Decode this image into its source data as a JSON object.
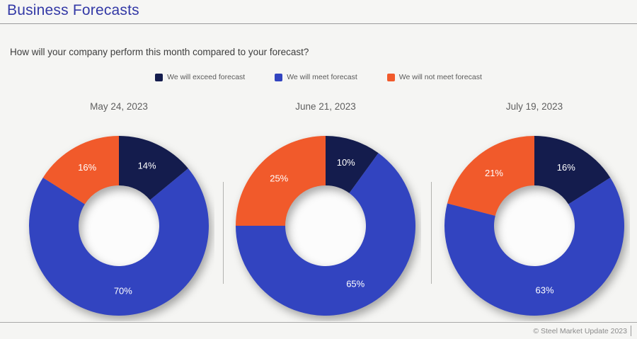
{
  "page": {
    "title": "Business Forecasts",
    "question": "How will your company perform this month compared to your forecast?",
    "footer": "© Steel Market Update 2023"
  },
  "colors": {
    "exceed": "#141C4D",
    "meet": "#3244C0",
    "not_meet": "#F15A2B",
    "title_accent": "#3339A6",
    "background": "#F5F5F3",
    "hole": "#FCFCFC"
  },
  "legend": [
    {
      "key": "exceed",
      "label": "We will exceed forecast"
    },
    {
      "key": "meet",
      "label": "We will meet forecast"
    },
    {
      "key": "not_meet",
      "label": "We will not meet forecast"
    }
  ],
  "chart_data": {
    "type": "pie",
    "subtype": "donut",
    "unit": "%",
    "start_angle_deg": 0,
    "direction": "clockwise",
    "legend_position": "top-center",
    "series_labels": [
      "We will exceed forecast",
      "We will meet forecast",
      "We will not meet forecast"
    ],
    "charts": [
      {
        "title": "May 24, 2023",
        "values": [
          14,
          70,
          16
        ],
        "labels": [
          "14%",
          "70%",
          "16%"
        ]
      },
      {
        "title": "June 21, 2023",
        "values": [
          10,
          65,
          25
        ],
        "labels": [
          "10%",
          "65%",
          "25%"
        ]
      },
      {
        "title": "July 19, 2023",
        "values": [
          16,
          63,
          21
        ],
        "labels": [
          "16%",
          "63%",
          "21%"
        ]
      }
    ]
  }
}
